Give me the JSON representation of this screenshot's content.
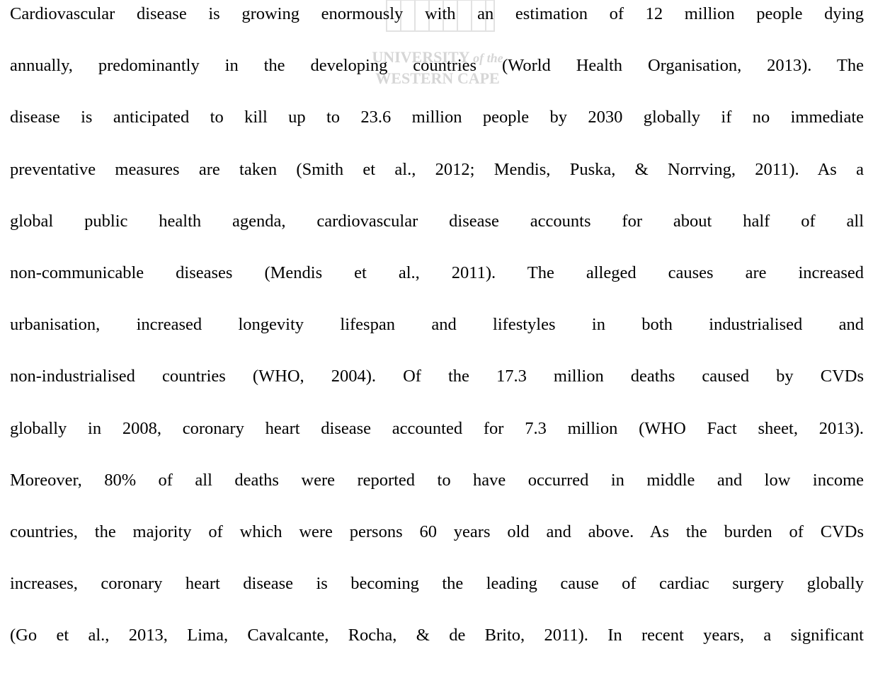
{
  "watermark": {
    "line1": "UNIVERSITY",
    "line1_suffix": "of the",
    "line2": "WESTERN CAPE"
  },
  "body": {
    "lines": [
      "Cardiovascular disease is growing enormously with an estimation of 12 million people dying",
      "annually, predominantly in the developing countries (World Health Organisation, 2013). The",
      "disease is anticipated to kill up to 23.6 million people by 2030 globally if no immediate",
      "preventative measures are taken (Smith et al., 2012; Mendis, Puska, & Norrving, 2011). As a",
      "global public health agenda, cardiovascular disease accounts for about half of all",
      "non-communicable diseases (Mendis et al., 2011). The alleged causes are increased",
      "urbanisation, increased longevity lifespan and lifestyles in both industrialised and",
      "non-industrialised countries (WHO, 2004). Of the 17.3 million deaths caused by CVDs",
      "globally in 2008, coronary heart disease accounted for 7.3 million (WHO Fact sheet, 2013).",
      "Moreover, 80% of all deaths were reported to have occurred in middle and low income",
      "countries, the majority of which were persons 60 years old and above. As the burden of CVDs",
      "increases, coronary heart disease is becoming the leading cause of cardiac surgery globally",
      "(Go et al., 2013, Lima, Cavalcante, Rocha, & de Brito, 2011). In recent years, a significant"
    ]
  }
}
